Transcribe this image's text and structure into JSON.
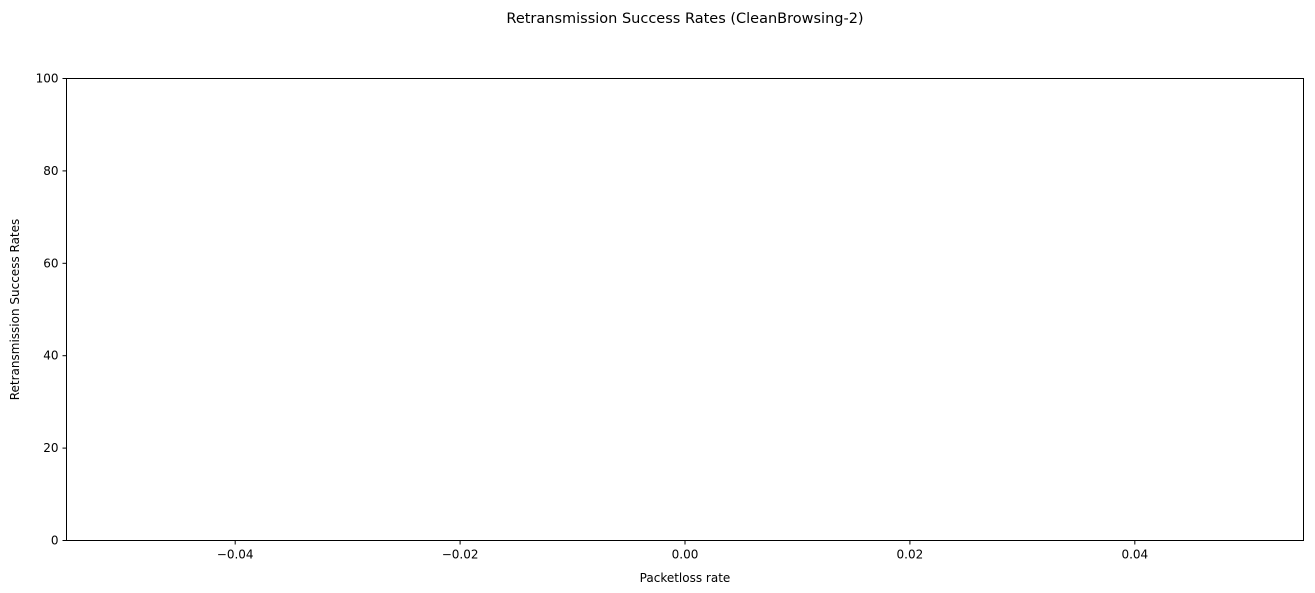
{
  "chart_data": {
    "type": "line",
    "title": "Retransmission Success Rates (CleanBrowsing-2)",
    "xlabel": "Packetloss rate",
    "ylabel": "Retransmission Success Rates",
    "xlim": [
      -0.055,
      0.055
    ],
    "ylim": [
      0,
      100
    ],
    "x_ticks": [
      -0.04,
      -0.02,
      0.0,
      0.02,
      0.04
    ],
    "x_tick_labels": [
      "−0.04",
      "−0.02",
      "0.00",
      "0.02",
      "0.04"
    ],
    "y_ticks": [
      0,
      20,
      40,
      60,
      80,
      100
    ],
    "y_tick_labels": [
      "0",
      "20",
      "40",
      "60",
      "80",
      "100"
    ],
    "series": [],
    "grid": false,
    "legend": "none"
  }
}
